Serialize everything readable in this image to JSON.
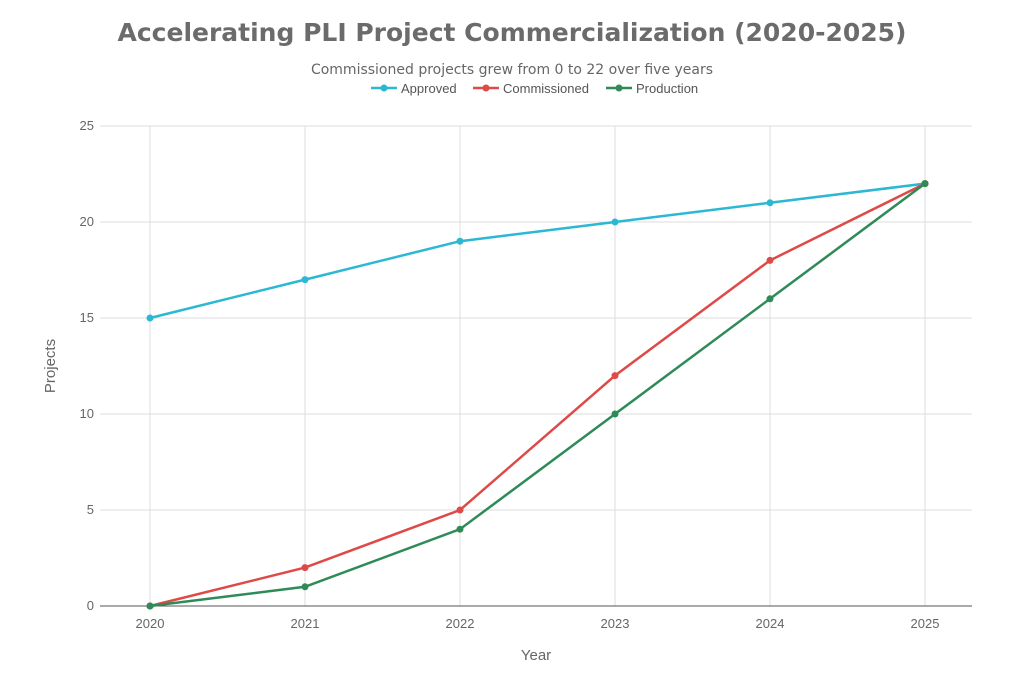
{
  "chart_data": {
    "type": "line",
    "title": "Accelerating PLI Project Commercialization (2020-2025)",
    "subtitle": "Commissioned projects grew from 0 to 22 over five years",
    "xlabel": "Year",
    "ylabel": "Projects",
    "x": [
      2020,
      2021,
      2022,
      2023,
      2024,
      2025
    ],
    "ylim": [
      0,
      25
    ],
    "yticks": [
      0,
      5,
      10,
      15,
      20,
      25
    ],
    "grid": true,
    "legend_position": "top",
    "series": [
      {
        "name": "Approved",
        "color": "#2bb8d2",
        "values": [
          15,
          17,
          19,
          20,
          21,
          22
        ]
      },
      {
        "name": "Commissioned",
        "color": "#de4a47",
        "values": [
          0,
          2,
          5,
          12,
          18,
          22
        ]
      },
      {
        "name": "Production",
        "color": "#2e8b57",
        "values": [
          0,
          1,
          4,
          10,
          16,
          22
        ]
      }
    ]
  }
}
